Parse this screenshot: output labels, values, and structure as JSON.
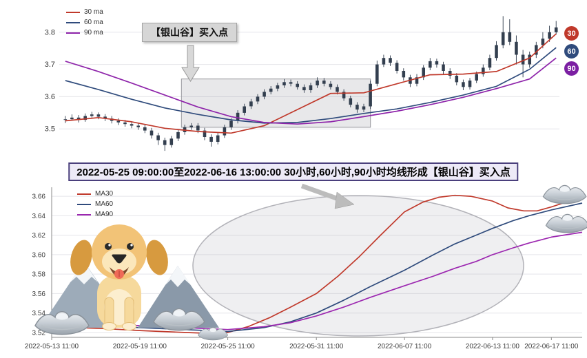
{
  "banner": {
    "text": "2022-05-25 09:00:00至2022-06-16 13:00:00 30小时,60小时,90小时均线形成【银山谷】买入点"
  },
  "icons": {
    "dog": "golden-retriever",
    "mountains": "snow-mountains",
    "ingot": "silver-ingot",
    "arrow": "gray-arrow"
  },
  "chart_data": [
    {
      "type": "candlestick",
      "title": "",
      "ylim": [
        3.43,
        3.87
      ],
      "yticks": [
        3.5,
        3.6,
        3.7,
        3.8
      ],
      "grid": true,
      "legend_position": "top-left",
      "candle_color": "#333f4f",
      "annotation": "【银山谷】买入点",
      "highlight_box": {
        "index_range": [
          18,
          46.5
        ],
        "value_range": [
          3.505,
          3.655
        ]
      },
      "badges": [
        {
          "label": "30",
          "color": "#c0392b"
        },
        {
          "label": "60",
          "color": "#2f4b7c"
        },
        {
          "label": "90",
          "color": "#7b1fa2"
        }
      ],
      "candles_ohlc": [
        [
          3.528,
          3.54,
          3.518,
          3.53
        ],
        [
          3.53,
          3.545,
          3.525,
          3.535
        ],
        [
          3.535,
          3.543,
          3.52,
          3.528
        ],
        [
          3.528,
          3.548,
          3.522,
          3.54
        ],
        [
          3.54,
          3.553,
          3.535,
          3.545
        ],
        [
          3.545,
          3.551,
          3.53,
          3.538
        ],
        [
          3.538,
          3.546,
          3.524,
          3.532
        ],
        [
          3.532,
          3.54,
          3.517,
          3.525
        ],
        [
          3.525,
          3.533,
          3.512,
          3.52
        ],
        [
          3.52,
          3.528,
          3.507,
          3.515
        ],
        [
          3.515,
          3.523,
          3.502,
          3.51
        ],
        [
          3.51,
          3.518,
          3.497,
          3.505
        ],
        [
          3.505,
          3.513,
          3.487,
          3.495
        ],
        [
          3.495,
          3.503,
          3.47,
          3.48
        ],
        [
          3.48,
          3.488,
          3.45,
          3.465
        ],
        [
          3.465,
          3.473,
          3.432,
          3.45
        ],
        [
          3.45,
          3.478,
          3.442,
          3.47
        ],
        [
          3.47,
          3.498,
          3.462,
          3.49
        ],
        [
          3.49,
          3.513,
          3.482,
          3.505
        ],
        [
          3.505,
          3.518,
          3.497,
          3.51
        ],
        [
          3.51,
          3.518,
          3.487,
          3.495
        ],
        [
          3.495,
          3.503,
          3.465,
          3.475
        ],
        [
          3.475,
          3.483,
          3.445,
          3.46
        ],
        [
          3.46,
          3.488,
          3.452,
          3.48
        ],
        [
          3.48,
          3.513,
          3.472,
          3.505
        ],
        [
          3.505,
          3.533,
          3.497,
          3.525
        ],
        [
          3.525,
          3.558,
          3.517,
          3.55
        ],
        [
          3.55,
          3.578,
          3.542,
          3.57
        ],
        [
          3.57,
          3.593,
          3.562,
          3.585
        ],
        [
          3.585,
          3.608,
          3.577,
          3.6
        ],
        [
          3.6,
          3.623,
          3.592,
          3.615
        ],
        [
          3.615,
          3.633,
          3.607,
          3.625
        ],
        [
          3.625,
          3.643,
          3.617,
          3.635
        ],
        [
          3.635,
          3.655,
          3.627,
          3.645
        ],
        [
          3.645,
          3.653,
          3.632,
          3.64
        ],
        [
          3.64,
          3.648,
          3.622,
          3.63
        ],
        [
          3.63,
          3.638,
          3.612,
          3.62
        ],
        [
          3.62,
          3.643,
          3.612,
          3.635
        ],
        [
          3.635,
          3.66,
          3.627,
          3.65
        ],
        [
          3.65,
          3.658,
          3.632,
          3.64
        ],
        [
          3.64,
          3.648,
          3.622,
          3.63
        ],
        [
          3.63,
          3.638,
          3.607,
          3.615
        ],
        [
          3.615,
          3.623,
          3.587,
          3.595
        ],
        [
          3.595,
          3.603,
          3.567,
          3.575
        ],
        [
          3.575,
          3.583,
          3.55,
          3.56
        ],
        [
          3.56,
          3.578,
          3.552,
          3.57
        ],
        [
          3.57,
          3.65,
          3.562,
          3.64
        ],
        [
          3.64,
          3.712,
          3.632,
          3.7
        ],
        [
          3.7,
          3.73,
          3.692,
          3.72
        ],
        [
          3.72,
          3.728,
          3.695,
          3.705
        ],
        [
          3.705,
          3.713,
          3.672,
          3.68
        ],
        [
          3.68,
          3.688,
          3.65,
          3.66
        ],
        [
          3.66,
          3.668,
          3.63,
          3.64
        ],
        [
          3.64,
          3.67,
          3.632,
          3.66
        ],
        [
          3.66,
          3.698,
          3.652,
          3.69
        ],
        [
          3.69,
          3.72,
          3.682,
          3.71
        ],
        [
          3.71,
          3.718,
          3.69,
          3.7
        ],
        [
          3.7,
          3.708,
          3.67,
          3.68
        ],
        [
          3.68,
          3.688,
          3.655,
          3.665
        ],
        [
          3.665,
          3.673,
          3.635,
          3.645
        ],
        [
          3.645,
          3.653,
          3.62,
          3.63
        ],
        [
          3.63,
          3.658,
          3.622,
          3.65
        ],
        [
          3.65,
          3.678,
          3.642,
          3.67
        ],
        [
          3.67,
          3.7,
          3.662,
          3.69
        ],
        [
          3.69,
          3.73,
          3.682,
          3.72
        ],
        [
          3.72,
          3.772,
          3.712,
          3.76
        ],
        [
          3.76,
          3.85,
          3.75,
          3.8
        ],
        [
          3.8,
          3.84,
          3.76,
          3.77
        ],
        [
          3.77,
          3.79,
          3.7,
          3.73
        ],
        [
          3.73,
          3.745,
          3.66,
          3.7
        ],
        [
          3.7,
          3.74,
          3.69,
          3.73
        ],
        [
          3.73,
          3.77,
          3.72,
          3.76
        ],
        [
          3.76,
          3.8,
          3.75,
          3.78
        ],
        [
          3.78,
          3.82,
          3.77,
          3.8
        ],
        [
          3.8,
          3.835,
          3.792,
          3.815
        ]
      ],
      "ma_sample_index": [
        0,
        5,
        10,
        15,
        20,
        25,
        30,
        35,
        40,
        45,
        50,
        55,
        60,
        65,
        70,
        74
      ],
      "series": [
        {
          "name": "30 ma",
          "color": "#c0392b",
          "values": [
            3.525,
            3.535,
            3.522,
            3.502,
            3.492,
            3.487,
            3.51,
            3.56,
            3.61,
            3.612,
            3.64,
            3.668,
            3.67,
            3.678,
            3.72,
            3.795
          ]
        },
        {
          "name": "60 ma",
          "color": "#2f4b7c",
          "values": [
            3.65,
            3.622,
            3.592,
            3.565,
            3.545,
            3.528,
            3.518,
            3.52,
            3.532,
            3.548,
            3.562,
            3.582,
            3.605,
            3.632,
            3.685,
            3.752
          ]
        },
        {
          "name": "90 ma",
          "color": "#8e24aa",
          "values": [
            3.71,
            3.678,
            3.642,
            3.605,
            3.568,
            3.538,
            3.52,
            3.515,
            3.522,
            3.538,
            3.555,
            3.575,
            3.598,
            3.625,
            3.655,
            3.72
          ]
        }
      ]
    },
    {
      "type": "line",
      "title": "",
      "ylim": [
        3.515,
        3.665
      ],
      "yticks": [
        3.52,
        3.54,
        3.56,
        3.58,
        3.6,
        3.62,
        3.64,
        3.66
      ],
      "grid": true,
      "legend_position": "top-left",
      "xticks": [
        {
          "pct": 0,
          "label": "2022-05-13 11:00"
        },
        {
          "pct": 16.6,
          "label": "2022-05-19 11:00"
        },
        {
          "pct": 33.2,
          "label": "2022-05-25 11:00"
        },
        {
          "pct": 49.9,
          "label": "2022-05-31 11:00"
        },
        {
          "pct": 66.5,
          "label": "2022-06-07 11:00"
        },
        {
          "pct": 83.1,
          "label": "2022-06-13 11:00"
        },
        {
          "pct": 94.2,
          "label": "2022-06-17 11:00"
        }
      ],
      "series": [
        {
          "name": "MA30",
          "color": "#c0392b",
          "points": [
            [
              0,
              3.526
            ],
            [
              10,
              3.524
            ],
            [
              16.6,
              3.522
            ],
            [
              25,
              3.52
            ],
            [
              30,
              3.519
            ],
            [
              33.2,
              3.52
            ],
            [
              37,
              3.526
            ],
            [
              41,
              3.535
            ],
            [
              45,
              3.546
            ],
            [
              49.9,
              3.56
            ],
            [
              54,
              3.578
            ],
            [
              58,
              3.598
            ],
            [
              62,
              3.62
            ],
            [
              66.5,
              3.644
            ],
            [
              70,
              3.654
            ],
            [
              73,
              3.659
            ],
            [
              76,
              3.661
            ],
            [
              79,
              3.66
            ],
            [
              83.1,
              3.655
            ],
            [
              86,
              3.648
            ],
            [
              89,
              3.645
            ],
            [
              91.5,
              3.645
            ],
            [
              94.2,
              3.649
            ],
            [
              97,
              3.654
            ],
            [
              100,
              3.657
            ]
          ]
        },
        {
          "name": "MA60",
          "color": "#2f4b7c",
          "points": [
            [
              0,
              3.528
            ],
            [
              16.6,
              3.525
            ],
            [
              33.2,
              3.521
            ],
            [
              40,
              3.525
            ],
            [
              45,
              3.531
            ],
            [
              49.9,
              3.54
            ],
            [
              55,
              3.553
            ],
            [
              60,
              3.567
            ],
            [
              66.5,
              3.584
            ],
            [
              72,
              3.6
            ],
            [
              76,
              3.611
            ],
            [
              80,
              3.62
            ],
            [
              83.1,
              3.627
            ],
            [
              87,
              3.635
            ],
            [
              90,
              3.64
            ],
            [
              94.2,
              3.646
            ],
            [
              100,
              3.653
            ]
          ]
        },
        {
          "name": "MA90",
          "color": "#9c27b0",
          "points": [
            [
              0,
              3.53
            ],
            [
              16.6,
              3.527
            ],
            [
              33.2,
              3.523
            ],
            [
              40,
              3.526
            ],
            [
              45,
              3.53
            ],
            [
              49.9,
              3.537
            ],
            [
              55,
              3.546
            ],
            [
              60,
              3.556
            ],
            [
              66.5,
              3.568
            ],
            [
              72,
              3.578
            ],
            [
              76,
              3.586
            ],
            [
              80,
              3.593
            ],
            [
              83.1,
              3.6
            ],
            [
              87,
              3.607
            ],
            [
              90,
              3.612
            ],
            [
              94.2,
              3.618
            ],
            [
              100,
              3.623
            ]
          ]
        }
      ]
    }
  ]
}
